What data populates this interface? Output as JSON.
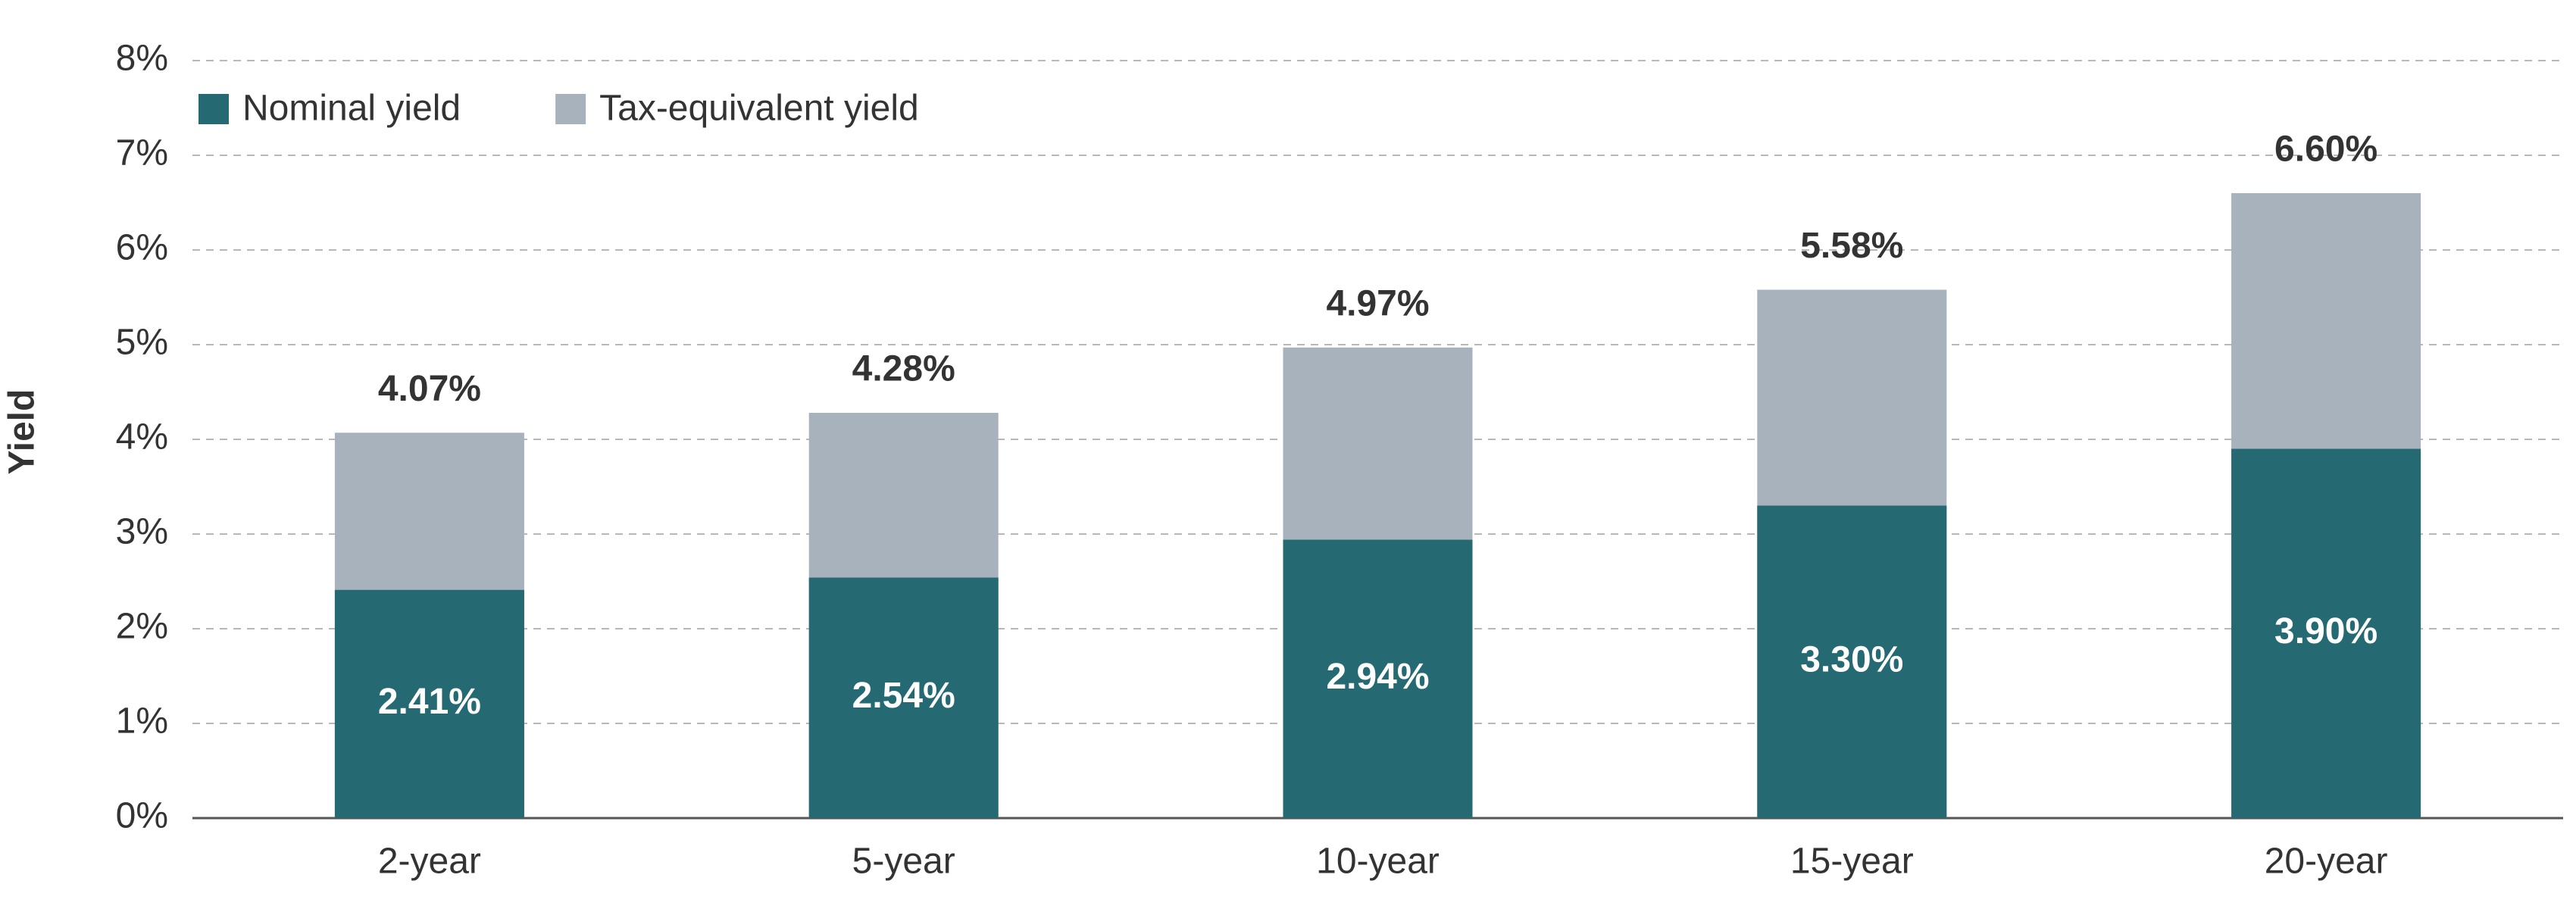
{
  "chart_data": {
    "type": "bar",
    "barmode": "overlay",
    "y_label": "Yield",
    "categories": [
      "2-year",
      "5-year",
      "10-year",
      "15-year",
      "20-year"
    ],
    "series": [
      {
        "name": "Nominal yield",
        "color": "#256973",
        "values": [
          2.41,
          2.54,
          2.94,
          3.3,
          3.9
        ],
        "value_labels": [
          "2.41%",
          "2.54%",
          "2.94%",
          "3.30%",
          "3.90%"
        ]
      },
      {
        "name": "Tax-equivalent yield",
        "color": "#a8b2bc",
        "values": [
          4.07,
          4.28,
          4.97,
          5.58,
          6.6
        ],
        "value_labels": [
          "4.07%",
          "4.28%",
          "4.97%",
          "5.58%",
          "6.60%"
        ]
      }
    ],
    "ylim": [
      0,
      8
    ],
    "yticks": [
      {
        "value": 0,
        "label": "0%"
      },
      {
        "value": 1,
        "label": "1%"
      },
      {
        "value": 2,
        "label": "2%"
      },
      {
        "value": 3,
        "label": "3%"
      },
      {
        "value": 4,
        "label": "4%"
      },
      {
        "value": 5,
        "label": "5%"
      },
      {
        "value": 6,
        "label": "6%"
      },
      {
        "value": 7,
        "label": "7%"
      },
      {
        "value": 8,
        "label": "8%"
      }
    ],
    "grid": true,
    "legend": "top-left"
  }
}
